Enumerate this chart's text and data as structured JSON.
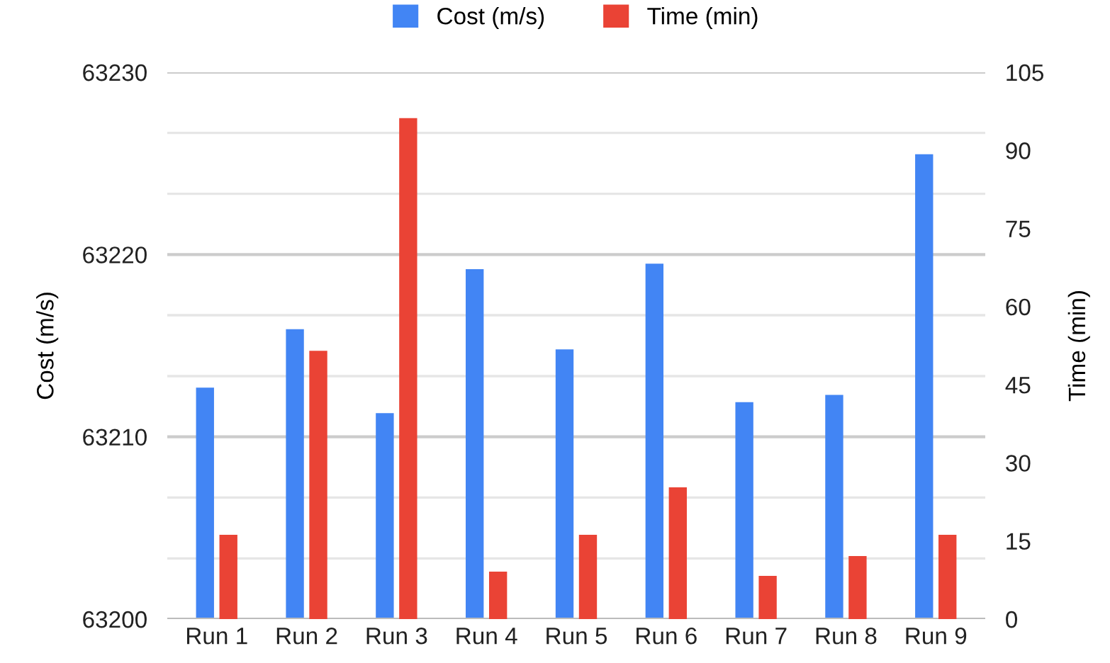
{
  "chart_data": {
    "type": "bar",
    "categories": [
      "Run 1",
      "Run 2",
      "Run 3",
      "Run 4",
      "Run 5",
      "Run 6",
      "Run 7",
      "Run 8",
      "Run 9"
    ],
    "series": [
      {
        "name": "Cost (m/s)",
        "color": "#4285f4",
        "values": [
          63212.7,
          63215.9,
          63211.3,
          63219.2,
          63214.8,
          63219.5,
          63211.9,
          63212.3,
          63225.5
        ]
      },
      {
        "name": "Time (min)",
        "color": "#ea4335",
        "axis": "y2",
        "values": [
          16.2,
          51.5,
          96.2,
          9.1,
          16.2,
          25.3,
          8.3,
          12.1,
          16.2
        ]
      }
    ],
    "ylabel": "Cost (m/s)",
    "y2label": "Time (min)",
    "ylim": [
      63200,
      63230
    ],
    "yticks": [
      63200,
      {
        "value": 63203.33,
        "label": null
      },
      {
        "value": 63206.67,
        "label": null
      },
      63210,
      {
        "value": 63213.33,
        "label": null
      },
      {
        "value": 63216.67,
        "label": null
      },
      63220,
      {
        "value": 63223.33,
        "label": null
      },
      {
        "value": 63226.67,
        "label": null
      },
      63230
    ],
    "y2lim": [
      0,
      105
    ],
    "y2ticks": [
      0,
      15,
      30,
      45,
      60,
      75,
      90,
      105
    ],
    "grid": "y",
    "legend": "top"
  }
}
